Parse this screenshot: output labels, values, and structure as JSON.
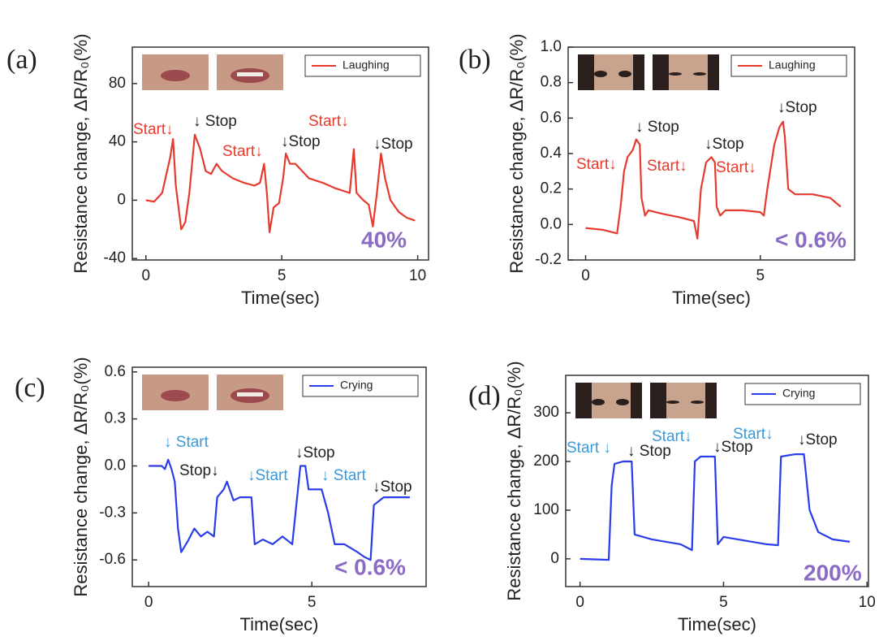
{
  "chart_data": [
    {
      "type": "line",
      "label": "(a)",
      "xlabel": "Time(sec)",
      "ylabel": "Resistance change, ΔR/R₀(%)",
      "x": [
        0,
        0.3,
        0.6,
        0.9,
        1.0,
        1.1,
        1.3,
        1.45,
        1.6,
        1.8,
        2.0,
        2.2,
        2.4,
        2.6,
        2.8,
        3.2,
        3.6,
        4.0,
        4.2,
        4.35,
        4.45,
        4.55,
        4.7,
        4.9,
        5.05,
        5.15,
        5.3,
        5.5,
        6.0,
        6.5,
        7.0,
        7.5,
        7.65,
        7.75,
        8.0,
        8.2,
        8.35,
        8.5,
        8.65,
        8.8,
        9.0,
        9.3,
        9.6,
        9.9
      ],
      "series": [
        {
          "name": "Laughing",
          "color": "#e53b2e",
          "values": [
            0,
            -1,
            5,
            30,
            42,
            10,
            -20,
            -15,
            5,
            45,
            35,
            20,
            18,
            25,
            20,
            15,
            12,
            10,
            12,
            25,
            5,
            -22,
            -5,
            -2,
            15,
            32,
            25,
            25,
            15,
            12,
            8,
            5,
            35,
            5,
            0,
            -3,
            -18,
            5,
            32,
            15,
            0,
            -8,
            -12,
            -14
          ]
        }
      ],
      "xlim": [
        -0.5,
        10.4
      ],
      "ylim": [
        -41,
        105
      ],
      "xticks": [
        0,
        5,
        10
      ],
      "yticks": [
        -40,
        0,
        40,
        80
      ],
      "legend": "upper right",
      "annotations": [
        {
          "text": "Start↓",
          "color": "#e53b2e"
        },
        {
          "text": "↓ Stop",
          "color": "#222222"
        },
        {
          "text": "Start↓",
          "color": "#e53b2e"
        },
        {
          "text": "↓Stop",
          "color": "#222222"
        },
        {
          "text": "Start↓",
          "color": "#e53b2e"
        },
        {
          "text": "↓Stop",
          "color": "#222222"
        },
        {
          "text": "40%",
          "color": "#8b6cc4"
        }
      ]
    },
    {
      "type": "line",
      "label": "(b)",
      "xlabel": "Time(sec)",
      "ylabel": "Resistance change, ΔR/R₀(%)",
      "x": [
        0,
        0.5,
        0.9,
        1.0,
        1.1,
        1.2,
        1.35,
        1.45,
        1.55,
        1.6,
        1.7,
        1.8,
        2.2,
        2.7,
        3.1,
        3.2,
        3.3,
        3.45,
        3.6,
        3.7,
        3.75,
        3.85,
        4.0,
        4.5,
        5.0,
        5.1,
        5.2,
        5.4,
        5.55,
        5.65,
        5.7,
        5.8,
        6.0,
        6.5,
        7.0,
        7.3
      ],
      "series": [
        {
          "name": "Laughing",
          "color": "#e53b2e",
          "values": [
            -0.02,
            -0.03,
            -0.05,
            0.1,
            0.3,
            0.38,
            0.42,
            0.48,
            0.45,
            0.15,
            0.05,
            0.08,
            0.06,
            0.04,
            0.02,
            -0.08,
            0.2,
            0.35,
            0.38,
            0.35,
            0.1,
            0.05,
            0.08,
            0.08,
            0.07,
            0.05,
            0.2,
            0.45,
            0.55,
            0.58,
            0.5,
            0.2,
            0.17,
            0.17,
            0.15,
            0.1
          ]
        }
      ],
      "xlim": [
        -0.5,
        7.7
      ],
      "ylim": [
        -0.2,
        1.0
      ],
      "xticks": [
        0,
        5
      ],
      "yticks": [
        -0.2,
        {
          "value": 0,
          "label": "0.0"
        },
        0.2,
        0.4,
        0.6,
        0.8,
        {
          "value": 1,
          "label": "1.0"
        }
      ],
      "legend": "upper right",
      "annotations": [
        {
          "text": "Start↓",
          "color": "#e53b2e"
        },
        {
          "text": "↓ Stop",
          "color": "#222222"
        },
        {
          "text": "Start↓",
          "color": "#e53b2e"
        },
        {
          "text": "↓Stop",
          "color": "#222222"
        },
        {
          "text": "Start↓",
          "color": "#e53b2e"
        },
        {
          "text": "↓Stop",
          "color": "#222222"
        },
        {
          "text": "< 0.6%",
          "color": "#8b6cc4"
        }
      ]
    },
    {
      "type": "line",
      "label": "(c)",
      "xlabel": "Time(sec)",
      "ylabel": "Resistance change, ΔR/R₀(%)",
      "x": [
        0,
        0.4,
        0.5,
        0.6,
        0.7,
        0.8,
        0.9,
        1.0,
        1.2,
        1.4,
        1.6,
        1.8,
        2.0,
        2.1,
        2.3,
        2.4,
        2.6,
        2.8,
        3.0,
        3.15,
        3.25,
        3.5,
        3.8,
        4.1,
        4.4,
        4.55,
        4.65,
        4.8,
        4.9,
        5.3,
        5.5,
        5.7,
        6.0,
        6.4,
        6.6,
        6.8,
        6.9,
        7.2,
        7.6,
        8.0
      ],
      "series": [
        {
          "name": "Crying",
          "color": "#2a3de8",
          "values": [
            0,
            0,
            -0.02,
            0.04,
            -0.02,
            -0.1,
            -0.4,
            -0.55,
            -0.48,
            -0.4,
            -0.45,
            -0.42,
            -0.45,
            -0.2,
            -0.15,
            -0.1,
            -0.22,
            -0.2,
            -0.2,
            -0.2,
            -0.5,
            -0.47,
            -0.5,
            -0.45,
            -0.5,
            -0.2,
            0,
            0,
            -0.15,
            -0.15,
            -0.3,
            -0.5,
            -0.5,
            -0.55,
            -0.58,
            -0.6,
            -0.25,
            -0.2,
            -0.2,
            -0.2
          ]
        }
      ],
      "xlim": [
        -0.5,
        8.5
      ],
      "ylim": [
        -0.77,
        0.63
      ],
      "xticks": [
        0,
        5
      ],
      "yticks": [
        -0.6,
        -0.3,
        {
          "value": 0,
          "label": "0.0"
        },
        0.3,
        0.6
      ],
      "legend": "upper right",
      "annotations": [
        {
          "text": "↓ Start",
          "color": "#3a9ad9"
        },
        {
          "text": "Stop↓",
          "color": "#222222"
        },
        {
          "text": "↓Start",
          "color": "#3a9ad9"
        },
        {
          "text": "↓Stop",
          "color": "#222222"
        },
        {
          "text": "↓ Start",
          "color": "#3a9ad9"
        },
        {
          "text": "↓Stop",
          "color": "#222222"
        },
        {
          "text": "< 0.6%",
          "color": "#8b6cc4"
        }
      ]
    },
    {
      "type": "line",
      "label": "(d)",
      "xlabel": "Time(sec)",
      "ylabel": "Resistance change, ΔR/R₀(%)",
      "x": [
        0,
        1.0,
        1.1,
        1.2,
        1.5,
        1.8,
        1.9,
        2.5,
        3.0,
        3.5,
        3.9,
        4.0,
        4.2,
        4.7,
        4.8,
        5.0,
        5.5,
        6.0,
        6.5,
        6.9,
        7.0,
        7.5,
        7.8,
        8.0,
        8.3,
        8.8,
        9.4
      ],
      "series": [
        {
          "name": "Crying",
          "color": "#2a3de8",
          "values": [
            0,
            -2,
            150,
            195,
            200,
            200,
            50,
            40,
            35,
            30,
            18,
            200,
            210,
            210,
            30,
            45,
            40,
            35,
            30,
            28,
            210,
            215,
            215,
            100,
            55,
            40,
            35
          ]
        }
      ],
      "xlim": [
        -0.5,
        10.05
      ],
      "ylim": [
        -57,
        377
      ],
      "xticks": [
        0,
        5,
        10
      ],
      "yticks": [
        0,
        100,
        200,
        300
      ],
      "legend": "upper right",
      "annotations": [
        {
          "text": "Start ↓",
          "color": "#3a9ad9"
        },
        {
          "text": "↓ Stop",
          "color": "#222222"
        },
        {
          "text": "Start↓",
          "color": "#3a9ad9"
        },
        {
          "text": "↓Stop",
          "color": "#222222"
        },
        {
          "text": "Start↓",
          "color": "#3a9ad9"
        },
        {
          "text": "↓Stop",
          "color": "#222222"
        },
        {
          "text": "200%",
          "color": "#8b6cc4"
        }
      ]
    }
  ]
}
